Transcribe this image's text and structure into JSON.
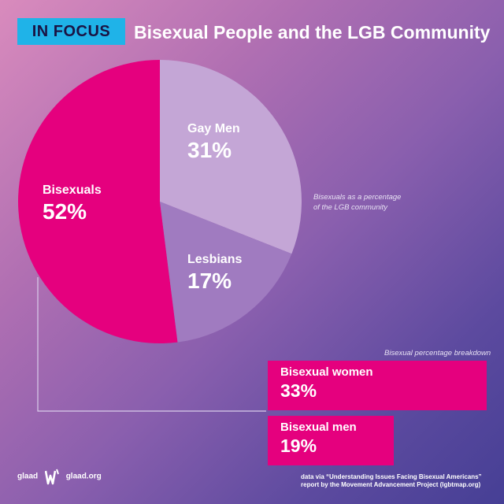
{
  "header": {
    "badge": "IN FOCUS",
    "title": "Bisexual People and the LGB Community"
  },
  "chart_data": [
    {
      "type": "pie",
      "title": "",
      "subtitle": "Bisexuals as a percentage of the LGB community",
      "slices": [
        {
          "label": "Bisexuals",
          "value": 52,
          "value_label": "52%",
          "color": "#e5007e"
        },
        {
          "label": "Gay Men",
          "value": 31,
          "value_label": "31%",
          "color": "#c4a6d6"
        },
        {
          "label": "Lesbians",
          "value": 17,
          "value_label": "17%",
          "color": "#a07bc0"
        }
      ]
    },
    {
      "type": "bar",
      "orientation": "horizontal",
      "title": "Bisexual percentage breakdown",
      "categories": [
        "Bisexual women",
        "Bisexual men"
      ],
      "values": [
        33,
        19
      ],
      "value_labels": [
        "33%",
        "19%"
      ],
      "color": "#e5007e"
    }
  ],
  "pie_note": [
    "Bisexuals as a percentage",
    "of the LGB community"
  ],
  "bar_note": "Bisexual percentage breakdown",
  "footer": {
    "logo_left": "glaad",
    "logo_right": "glaad.org",
    "source_line1": "data via “Understanding Issues Facing Bisexual Americans”",
    "source_line2": "report by the Movement Advancement Project (lgbtmap.org)"
  }
}
